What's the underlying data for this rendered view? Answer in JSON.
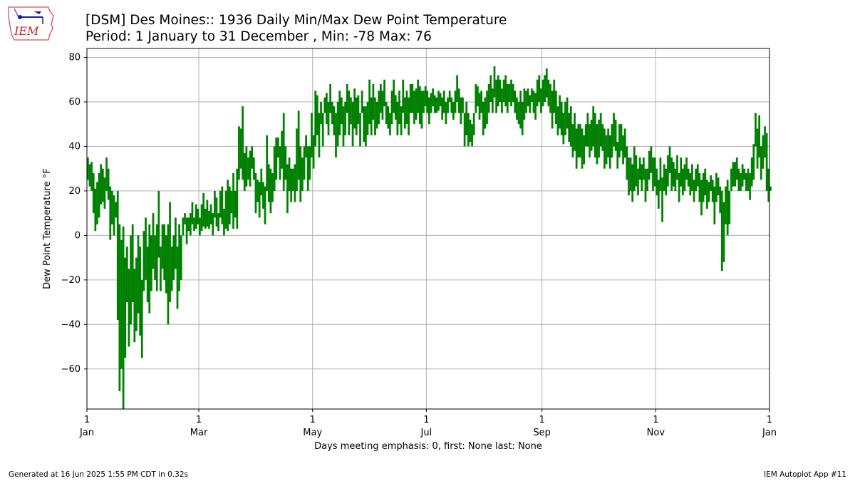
{
  "header": {
    "title": "[DSM] Des Moines:: 1936 Daily Min/Max Dew Point Temperature",
    "subtitle": "Period: 1 January to 31 December , Min: -78 Max: 76",
    "logo_text": "IEM"
  },
  "footer": {
    "generated": "Generated at 16 Jun 2025 1:55 PM CDT in 0.32s",
    "app": "IEM Autoplot App #11"
  },
  "colors": {
    "bars": "#008000",
    "grid": "#b0b0b0",
    "logo_red": "#cc2222",
    "logo_blue": "#1a1aaa"
  },
  "chart_data": {
    "type": "bar",
    "title": "[DSM] Des Moines:: 1936 Daily Min/Max Dew Point Temperature",
    "subtitle": "Period: 1 January to 31 December , Min: -78 Max: 76",
    "xlabel": "Days meeting emphasis: 0, first: None last: None",
    "ylabel": "Dew Point Temperature °F",
    "ylim": [
      -78,
      84
    ],
    "yticks": [
      80,
      60,
      40,
      20,
      0,
      -20,
      -40,
      -60
    ],
    "ytick_labels": [
      "80",
      "60",
      "40",
      "20",
      "0",
      "−20",
      "−40",
      "−60"
    ],
    "xlim": [
      "1936-01-01",
      "1937-01-01"
    ],
    "xticks": [
      {
        "date": "1936-01-01",
        "day": "1",
        "month": "Jan"
      },
      {
        "date": "1936-03-01",
        "day": "1",
        "month": "Mar"
      },
      {
        "date": "1936-05-01",
        "day": "1",
        "month": "May"
      },
      {
        "date": "1936-07-01",
        "day": "1",
        "month": "Jul"
      },
      {
        "date": "1936-09-01",
        "day": "1",
        "month": "Sep"
      },
      {
        "date": "1936-11-01",
        "day": "1",
        "month": "Nov"
      },
      {
        "date": "1937-01-01",
        "day": "1",
        "month": "Jan"
      }
    ],
    "grid": true,
    "start_date": "1936-01-01",
    "daily_range": [
      [
        25,
        35
      ],
      [
        22,
        32
      ],
      [
        20,
        33
      ],
      [
        10,
        28
      ],
      [
        2,
        21
      ],
      [
        5,
        24
      ],
      [
        8,
        28
      ],
      [
        14,
        32
      ],
      [
        15,
        30
      ],
      [
        12,
        26
      ],
      [
        20,
        35
      ],
      [
        16,
        30
      ],
      [
        -2,
        22
      ],
      [
        5,
        20
      ],
      [
        0,
        18
      ],
      [
        8,
        15
      ],
      [
        -38,
        20
      ],
      [
        -70,
        5
      ],
      [
        -60,
        -2
      ],
      [
        -78,
        4
      ],
      [
        -55,
        -10
      ],
      [
        -30,
        -5
      ],
      [
        -50,
        -15
      ],
      [
        -40,
        0
      ],
      [
        -30,
        5
      ],
      [
        -48,
        -15
      ],
      [
        -43,
        -10
      ],
      [
        -35,
        0
      ],
      [
        -45,
        -5
      ],
      [
        -55,
        -20
      ],
      [
        -25,
        2
      ],
      [
        -20,
        8
      ],
      [
        -30,
        -5
      ],
      [
        -35,
        5
      ],
      [
        -25,
        0
      ],
      [
        -15,
        10
      ],
      [
        -20,
        0
      ],
      [
        -25,
        5
      ],
      [
        -10,
        20
      ],
      [
        -25,
        -5
      ],
      [
        -15,
        5
      ],
      [
        -20,
        5
      ],
      [
        -26,
        0
      ],
      [
        -40,
        5
      ],
      [
        -30,
        15
      ],
      [
        -25,
        -5
      ],
      [
        -20,
        0
      ],
      [
        -15,
        8
      ],
      [
        -33,
        -5
      ],
      [
        -25,
        5
      ],
      [
        -20,
        0
      ],
      [
        0,
        8
      ],
      [
        5,
        10
      ],
      [
        -4,
        8
      ],
      [
        2,
        8
      ],
      [
        0,
        10
      ],
      [
        5,
        15
      ],
      [
        2,
        8
      ],
      [
        3,
        14
      ],
      [
        5,
        12
      ],
      [
        0,
        8
      ],
      [
        2,
        14
      ],
      [
        4,
        19
      ],
      [
        3,
        12
      ],
      [
        4,
        16
      ],
      [
        3,
        11
      ],
      [
        5,
        14
      ],
      [
        0,
        10
      ],
      [
        8,
        20
      ],
      [
        4,
        17
      ],
      [
        2,
        10
      ],
      [
        8,
        20
      ],
      [
        5,
        22
      ],
      [
        0,
        12
      ],
      [
        3,
        20
      ],
      [
        2,
        25
      ],
      [
        5,
        22
      ],
      [
        10,
        20
      ],
      [
        3,
        28
      ],
      [
        8,
        20
      ],
      [
        3,
        30
      ],
      [
        25,
        49
      ],
      [
        30,
        48
      ],
      [
        25,
        58
      ],
      [
        20,
        37
      ],
      [
        22,
        40
      ],
      [
        25,
        35
      ],
      [
        22,
        38
      ],
      [
        30,
        40
      ],
      [
        25,
        35
      ],
      [
        10,
        28
      ],
      [
        15,
        25
      ],
      [
        8,
        24
      ],
      [
        18,
        30
      ],
      [
        12,
        24
      ],
      [
        5,
        22
      ],
      [
        20,
        45
      ],
      [
        15,
        32
      ],
      [
        10,
        30
      ],
      [
        15,
        28
      ],
      [
        20,
        40
      ],
      [
        25,
        44
      ],
      [
        35,
        44
      ],
      [
        25,
        40
      ],
      [
        30,
        47
      ],
      [
        20,
        55
      ],
      [
        25,
        40
      ],
      [
        10,
        32
      ],
      [
        20,
        35
      ],
      [
        15,
        30
      ],
      [
        20,
        30
      ],
      [
        15,
        32
      ],
      [
        20,
        48
      ],
      [
        25,
        56
      ],
      [
        15,
        40
      ],
      [
        20,
        35
      ],
      [
        25,
        40
      ],
      [
        35,
        45
      ],
      [
        20,
        40
      ],
      [
        25,
        40
      ],
      [
        35,
        55
      ],
      [
        30,
        45
      ],
      [
        40,
        65
      ],
      [
        45,
        63
      ],
      [
        35,
        55
      ],
      [
        50,
        60
      ],
      [
        40,
        55
      ],
      [
        55,
        62
      ],
      [
        50,
        64
      ],
      [
        45,
        60
      ],
      [
        55,
        68
      ],
      [
        50,
        60
      ],
      [
        45,
        58
      ],
      [
        35,
        55
      ],
      [
        40,
        60
      ],
      [
        45,
        65
      ],
      [
        50,
        62
      ],
      [
        40,
        58
      ],
      [
        45,
        60
      ],
      [
        55,
        68
      ],
      [
        45,
        65
      ],
      [
        50,
        62
      ],
      [
        40,
        60
      ],
      [
        48,
        66
      ],
      [
        45,
        62
      ],
      [
        50,
        63
      ],
      [
        40,
        55
      ],
      [
        55,
        65
      ],
      [
        42,
        58
      ],
      [
        40,
        58
      ],
      [
        45,
        60
      ],
      [
        50,
        70
      ],
      [
        45,
        62
      ],
      [
        52,
        68
      ],
      [
        45,
        62
      ],
      [
        48,
        60
      ],
      [
        50,
        65
      ],
      [
        55,
        68
      ],
      [
        52,
        65
      ],
      [
        58,
        70
      ],
      [
        50,
        60
      ],
      [
        48,
        58
      ],
      [
        45,
        55
      ],
      [
        50,
        65
      ],
      [
        55,
        70
      ],
      [
        52,
        63
      ],
      [
        45,
        60
      ],
      [
        50,
        65
      ],
      [
        45,
        58
      ],
      [
        55,
        70
      ],
      [
        48,
        62
      ],
      [
        50,
        65
      ],
      [
        45,
        62
      ],
      [
        55,
        68
      ],
      [
        55,
        68
      ],
      [
        50,
        65
      ],
      [
        52,
        66
      ],
      [
        55,
        70
      ],
      [
        50,
        67
      ],
      [
        48,
        65
      ],
      [
        55,
        65
      ],
      [
        58,
        67
      ],
      [
        55,
        65
      ],
      [
        50,
        62
      ],
      [
        55,
        64
      ],
      [
        58,
        66
      ],
      [
        55,
        63
      ],
      [
        55,
        62
      ],
      [
        56,
        65
      ],
      [
        58,
        64
      ],
      [
        52,
        62
      ],
      [
        55,
        65
      ],
      [
        50,
        60
      ],
      [
        55,
        62
      ],
      [
        60,
        65
      ],
      [
        55,
        62
      ],
      [
        52,
        60
      ],
      [
        55,
        65
      ],
      [
        60,
        72
      ],
      [
        55,
        66
      ],
      [
        50,
        62
      ],
      [
        55,
        62
      ],
      [
        40,
        55
      ],
      [
        45,
        60
      ],
      [
        40,
        55
      ],
      [
        42,
        52
      ],
      [
        40,
        50
      ],
      [
        45,
        55
      ],
      [
        55,
        68
      ],
      [
        58,
        67
      ],
      [
        52,
        64
      ],
      [
        55,
        65
      ],
      [
        45,
        60
      ],
      [
        48,
        62
      ],
      [
        50,
        65
      ],
      [
        55,
        68
      ],
      [
        60,
        72
      ],
      [
        55,
        66
      ],
      [
        62,
        76
      ],
      [
        55,
        70
      ],
      [
        58,
        72
      ],
      [
        60,
        70
      ],
      [
        55,
        66
      ],
      [
        60,
        70
      ],
      [
        58,
        72
      ],
      [
        55,
        68
      ],
      [
        60,
        68
      ],
      [
        58,
        70
      ],
      [
        60,
        68
      ],
      [
        55,
        65
      ],
      [
        52,
        62
      ],
      [
        50,
        60
      ],
      [
        48,
        65
      ],
      [
        45,
        60
      ],
      [
        52,
        66
      ],
      [
        55,
        65
      ],
      [
        58,
        66
      ],
      [
        55,
        63
      ],
      [
        60,
        66
      ],
      [
        55,
        65
      ],
      [
        52,
        64
      ],
      [
        58,
        70
      ],
      [
        60,
        72
      ],
      [
        55,
        66
      ],
      [
        58,
        70
      ],
      [
        60,
        72
      ],
      [
        62,
        75
      ],
      [
        58,
        70
      ],
      [
        55,
        68
      ],
      [
        48,
        65
      ],
      [
        55,
        70
      ],
      [
        50,
        65
      ],
      [
        45,
        58
      ],
      [
        48,
        63
      ],
      [
        45,
        60
      ],
      [
        41,
        55
      ],
      [
        45,
        60
      ],
      [
        48,
        62
      ],
      [
        42,
        55
      ],
      [
        40,
        58
      ],
      [
        35,
        50
      ],
      [
        38,
        55
      ],
      [
        30,
        48
      ],
      [
        35,
        50
      ],
      [
        35,
        50
      ],
      [
        30,
        48
      ],
      [
        32,
        45
      ],
      [
        40,
        50
      ],
      [
        40,
        55
      ],
      [
        35,
        50
      ],
      [
        38,
        52
      ],
      [
        40,
        58
      ],
      [
        35,
        55
      ],
      [
        32,
        50
      ],
      [
        35,
        52
      ],
      [
        40,
        55
      ],
      [
        38,
        50
      ],
      [
        30,
        48
      ],
      [
        32,
        45
      ],
      [
        35,
        48
      ],
      [
        30,
        45
      ],
      [
        35,
        50
      ],
      [
        40,
        55
      ],
      [
        38,
        52
      ],
      [
        30,
        42
      ],
      [
        35,
        50
      ],
      [
        38,
        50
      ],
      [
        32,
        45
      ],
      [
        35,
        48
      ],
      [
        25,
        40
      ],
      [
        18,
        35
      ],
      [
        20,
        35
      ],
      [
        15,
        32
      ],
      [
        20,
        40
      ],
      [
        22,
        36
      ],
      [
        18,
        30
      ],
      [
        25,
        35
      ],
      [
        20,
        32
      ],
      [
        25,
        35
      ],
      [
        15,
        30
      ],
      [
        20,
        30
      ],
      [
        25,
        38
      ],
      [
        28,
        40
      ],
      [
        20,
        35
      ],
      [
        22,
        35
      ],
      [
        18,
        30
      ],
      [
        12,
        25
      ],
      [
        20,
        35
      ],
      [
        6,
        26
      ],
      [
        20,
        32
      ],
      [
        18,
        30
      ],
      [
        22,
        36
      ],
      [
        28,
        40
      ],
      [
        20,
        35
      ],
      [
        22,
        33
      ],
      [
        20,
        30
      ],
      [
        25,
        36
      ],
      [
        15,
        28
      ],
      [
        22,
        35
      ],
      [
        18,
        30
      ],
      [
        20,
        32
      ],
      [
        25,
        35
      ],
      [
        22,
        30
      ],
      [
        18,
        28
      ],
      [
        20,
        32
      ],
      [
        15,
        25
      ],
      [
        20,
        30
      ],
      [
        22,
        32
      ],
      [
        15,
        28
      ],
      [
        9,
        25
      ],
      [
        15,
        28
      ],
      [
        18,
        30
      ],
      [
        12,
        25
      ],
      [
        15,
        24
      ],
      [
        20,
        27
      ],
      [
        15,
        25
      ],
      [
        5,
        22
      ],
      [
        15,
        28
      ],
      [
        18,
        26
      ],
      [
        10,
        22
      ],
      [
        -16,
        20
      ],
      [
        -12,
        15
      ],
      [
        5,
        22
      ],
      [
        0,
        25
      ],
      [
        5,
        20
      ],
      [
        20,
        30
      ],
      [
        22,
        33
      ],
      [
        22,
        33
      ],
      [
        25,
        35
      ],
      [
        20,
        30
      ],
      [
        20,
        28
      ],
      [
        22,
        32
      ],
      [
        25,
        30
      ],
      [
        20,
        28
      ],
      [
        20,
        30
      ],
      [
        16,
        28
      ],
      [
        22,
        35
      ],
      [
        25,
        41
      ],
      [
        40,
        55
      ],
      [
        30,
        48
      ],
      [
        35,
        54
      ],
      [
        25,
        40
      ],
      [
        30,
        45
      ],
      [
        35,
        49
      ],
      [
        20,
        46
      ],
      [
        15,
        30
      ],
      [
        20,
        22
      ]
    ]
  }
}
